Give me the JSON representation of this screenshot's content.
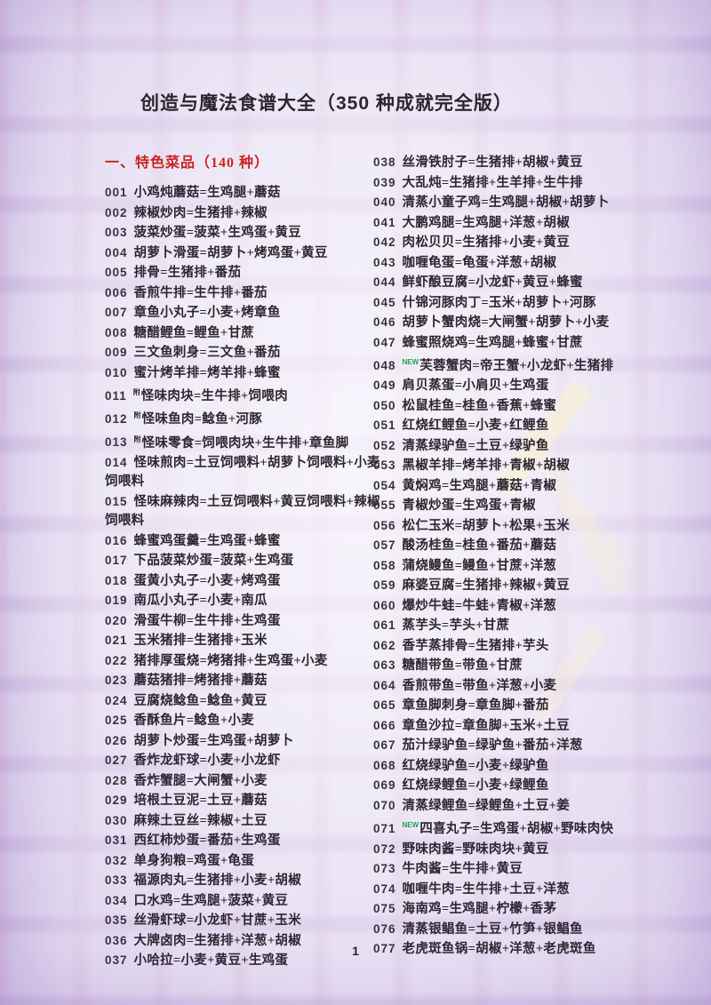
{
  "page": {
    "title": "创造与魔法食谱大全（350 种成就完全版）",
    "section_header": "一、特色菜品（140 种）",
    "page_number": "1"
  },
  "colors": {
    "background_base": "#d7cdea",
    "grid_line_pink": "#cda5cd",
    "grid_line_purple": "#b796d0",
    "section_header_red": "#cc2222",
    "body_text": "#2e2733",
    "new_tag_green": "#21a04f",
    "watermark_cream": "#f8f0d5"
  },
  "columns": {
    "left": [
      {
        "num": "001",
        "tag": "",
        "text": "小鸡炖蘑菇=生鸡腿+蘑菇"
      },
      {
        "num": "002",
        "tag": "",
        "text": "辣椒炒肉=生猪排+辣椒"
      },
      {
        "num": "003",
        "tag": "",
        "text": "菠菜炒蛋=菠菜+生鸡蛋+黄豆"
      },
      {
        "num": "004",
        "tag": "",
        "text": "胡萝卜滑蛋=胡萝卜+烤鸡蛋+黄豆"
      },
      {
        "num": "005",
        "tag": "",
        "text": "排骨=生猪排+番茄"
      },
      {
        "num": "006",
        "tag": "",
        "text": "香煎牛排=生牛排+番茄"
      },
      {
        "num": "007",
        "tag": "",
        "text": "章鱼小丸子=小麦+烤章鱼"
      },
      {
        "num": "008",
        "tag": "",
        "text": "糖醋鲤鱼=鲤鱼+甘蔗"
      },
      {
        "num": "009",
        "tag": "",
        "text": "三文鱼刺身=三文鱼+番茄"
      },
      {
        "num": "010",
        "tag": "",
        "text": "蜜汁烤羊排=烤羊排+蜂蜜"
      },
      {
        "num": "011",
        "tag": "附",
        "text": "怪味肉块=生牛排+饲喂肉"
      },
      {
        "num": "012",
        "tag": "附",
        "text": "怪味鱼肉=鲶鱼+河豚"
      },
      {
        "num": "013",
        "tag": "附",
        "text": "怪味零食=饲喂肉块+生牛排+章鱼脚"
      },
      {
        "num": "014",
        "tag": "",
        "text": "怪味煎肉=土豆饲喂料+胡萝卜饲喂料+小麦饲喂料"
      },
      {
        "num": "015",
        "tag": "",
        "text": "怪味麻辣肉=土豆饲喂料+黄豆饲喂料+辣椒饲喂料"
      },
      {
        "num": "016",
        "tag": "",
        "text": "蜂蜜鸡蛋羹=生鸡蛋+蜂蜜"
      },
      {
        "num": "017",
        "tag": "",
        "text": "下品菠菜炒蛋=菠菜+生鸡蛋"
      },
      {
        "num": "018",
        "tag": "",
        "text": "蛋黄小丸子=小麦+烤鸡蛋"
      },
      {
        "num": "019",
        "tag": "",
        "text": "南瓜小丸子=小麦+南瓜"
      },
      {
        "num": "020",
        "tag": "",
        "text": "滑蛋牛柳=生牛排+生鸡蛋"
      },
      {
        "num": "021",
        "tag": "",
        "text": "玉米猪排=生猪排+玉米"
      },
      {
        "num": "022",
        "tag": "",
        "text": "猪排厚蛋烧=烤猪排+生鸡蛋+小麦"
      },
      {
        "num": "023",
        "tag": "",
        "text": "蘑菇猪排=烤猪排+蘑菇"
      },
      {
        "num": "024",
        "tag": "",
        "text": "豆腐烧鲶鱼=鲶鱼+黄豆"
      },
      {
        "num": "025",
        "tag": "",
        "text": "香酥鱼片=鲶鱼+小麦"
      },
      {
        "num": "026",
        "tag": "",
        "text": "胡萝卜炒蛋=生鸡蛋+胡萝卜"
      },
      {
        "num": "027",
        "tag": "",
        "text": "香炸龙虾球=小麦+小龙虾"
      },
      {
        "num": "028",
        "tag": "",
        "text": "香炸蟹腿=大闸蟹+小麦"
      },
      {
        "num": "029",
        "tag": "",
        "text": "培根土豆泥=土豆+蘑菇"
      },
      {
        "num": "030",
        "tag": "",
        "text": "麻辣土豆丝=辣椒+土豆"
      },
      {
        "num": "031",
        "tag": "",
        "text": "西红柿炒蛋=番茄+生鸡蛋"
      },
      {
        "num": "032",
        "tag": "",
        "text": "单身狗粮=鸡蛋+龟蛋"
      },
      {
        "num": "033",
        "tag": "",
        "text": "福源肉丸=生猪排+小麦+胡椒"
      },
      {
        "num": "034",
        "tag": "",
        "text": "口水鸡=生鸡腿+菠菜+黄豆"
      },
      {
        "num": "035",
        "tag": "",
        "text": "丝滑虾球=小龙虾+甘蔗+玉米"
      },
      {
        "num": "036",
        "tag": "",
        "text": "大牌卤肉=生猪排+洋葱+胡椒"
      },
      {
        "num": "037",
        "tag": "",
        "text": "小哈拉=小麦+黄豆+生鸡蛋"
      }
    ],
    "right": [
      {
        "num": "038",
        "tag": "",
        "text": "丝滑铁肘子=生猪排+胡椒+黄豆"
      },
      {
        "num": "039",
        "tag": "",
        "text": "大乱炖=生猪排+生羊排+生牛排"
      },
      {
        "num": "040",
        "tag": "",
        "text": "清蒸小童子鸡=生鸡腿+胡椒+胡萝卜"
      },
      {
        "num": "041",
        "tag": "",
        "text": "大鹏鸡腿=生鸡腿+洋葱+胡椒"
      },
      {
        "num": "042",
        "tag": "",
        "text": "肉松贝贝=生猪排+小麦+黄豆"
      },
      {
        "num": "043",
        "tag": "",
        "text": "咖喱龟蛋=龟蛋+洋葱+胡椒"
      },
      {
        "num": "044",
        "tag": "",
        "text": "鲜虾酿豆腐=小龙虾+黄豆+蜂蜜"
      },
      {
        "num": "045",
        "tag": "",
        "text": "什锦河豚肉丁=玉米+胡萝卜+河豚"
      },
      {
        "num": "046",
        "tag": "",
        "text": "胡萝卜蟹肉烧=大闸蟹+胡萝卜+小麦"
      },
      {
        "num": "047",
        "tag": "",
        "text": "蜂蜜照烧鸡=生鸡腿+蜂蜜+甘蔗"
      },
      {
        "num": "048",
        "tag": "NEW",
        "text": "芙蓉蟹肉=帝王蟹+小龙虾+生猪排"
      },
      {
        "num": "049",
        "tag": "",
        "text": "肩贝蒸蛋=小肩贝+生鸡蛋"
      },
      {
        "num": "050",
        "tag": "",
        "text": "松鼠桂鱼=桂鱼+香蕉+蜂蜜"
      },
      {
        "num": "051",
        "tag": "",
        "text": "红烧红鲤鱼=小麦+红鲤鱼"
      },
      {
        "num": "052",
        "tag": "",
        "text": "清蒸绿驴鱼=土豆+绿驴鱼"
      },
      {
        "num": "053",
        "tag": "",
        "text": "黑椒羊排=烤羊排+青椒+胡椒"
      },
      {
        "num": "054",
        "tag": "",
        "text": "黄焖鸡=生鸡腿+蘑菇+青椒"
      },
      {
        "num": "055",
        "tag": "",
        "text": "青椒炒蛋=生鸡蛋+青椒"
      },
      {
        "num": "056",
        "tag": "",
        "text": "松仁玉米=胡萝卜+松果+玉米"
      },
      {
        "num": "057",
        "tag": "",
        "text": "酸汤桂鱼=桂鱼+番茄+蘑菇"
      },
      {
        "num": "058",
        "tag": "",
        "text": "蒲烧鳗鱼=鳗鱼+甘蔗+洋葱"
      },
      {
        "num": "059",
        "tag": "",
        "text": "麻婆豆腐=生猪排+辣椒+黄豆"
      },
      {
        "num": "060",
        "tag": "",
        "text": "爆炒牛蛙=牛蛙+青椒+洋葱"
      },
      {
        "num": "061",
        "tag": "",
        "text": "蒸芋头=芋头+甘蔗"
      },
      {
        "num": "062",
        "tag": "",
        "text": "香芋蒸排骨=生猪排+芋头"
      },
      {
        "num": "063",
        "tag": "",
        "text": "糖醋带鱼=带鱼+甘蔗"
      },
      {
        "num": "064",
        "tag": "",
        "text": "香煎带鱼=带鱼+洋葱+小麦"
      },
      {
        "num": "065",
        "tag": "",
        "text": "章鱼脚刺身=章鱼脚+番茄"
      },
      {
        "num": "066",
        "tag": "",
        "text": "章鱼沙拉=章鱼脚+玉米+土豆"
      },
      {
        "num": "067",
        "tag": "",
        "text": "茄汁绿驴鱼=绿驴鱼+番茄+洋葱"
      },
      {
        "num": "068",
        "tag": "",
        "text": "红烧绿驴鱼=小麦+绿驴鱼"
      },
      {
        "num": "069",
        "tag": "",
        "text": "红烧绿鲤鱼=小麦+绿鲤鱼"
      },
      {
        "num": "070",
        "tag": "",
        "text": "清蒸绿鲤鱼=绿鲤鱼+土豆+姜"
      },
      {
        "num": "071",
        "tag": "NEW",
        "text": "四喜丸子=生鸡蛋+胡椒+野味肉快"
      },
      {
        "num": "072",
        "tag": "",
        "text": "野味肉酱=野味肉块+黄豆"
      },
      {
        "num": "073",
        "tag": "",
        "text": "牛肉酱=生牛排+黄豆"
      },
      {
        "num": "074",
        "tag": "",
        "text": "咖喱牛肉=生牛排+土豆+洋葱"
      },
      {
        "num": "075",
        "tag": "",
        "text": "海南鸡=生鸡腿+柠檬+香茅"
      },
      {
        "num": "076",
        "tag": "",
        "text": "清蒸银鲳鱼=土豆+竹笋+银鲳鱼"
      },
      {
        "num": "077",
        "tag": "",
        "text": "老虎斑鱼锅=胡椒+洋葱+老虎斑鱼"
      }
    ]
  }
}
